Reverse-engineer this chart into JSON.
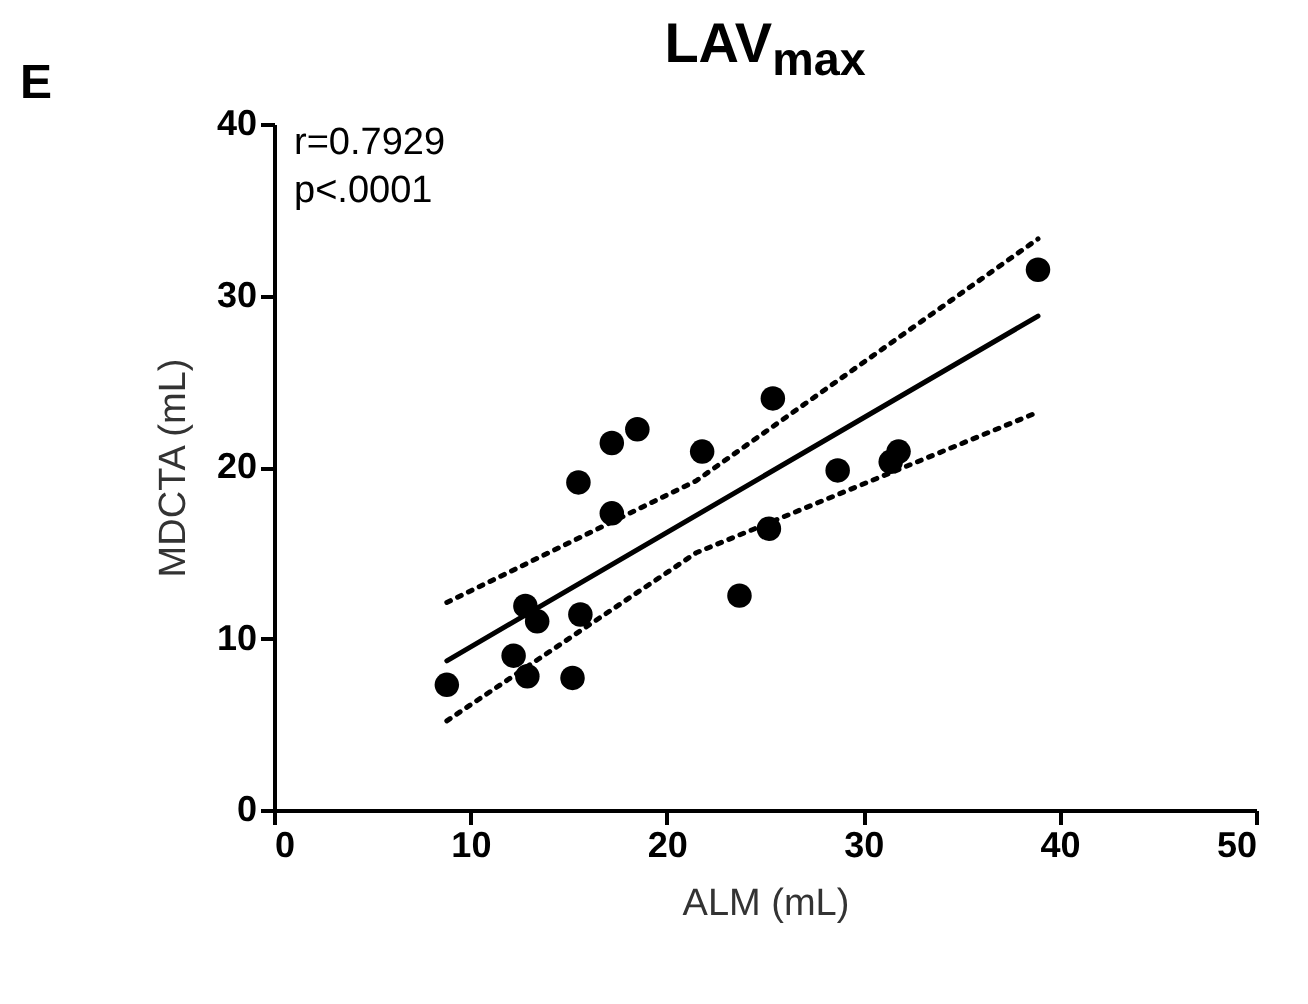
{
  "chart_data": {
    "type": "scatter",
    "title": "LAV$_{max}$",
    "xlabel": "ALM (mL)",
    "ylabel": "MDCTA (mL)",
    "annotations": [
      "E",
      "r=0.7929",
      "p<.0001"
    ],
    "xlim": [
      0,
      50
    ],
    "xticks": [
      0,
      10,
      20,
      30,
      40,
      50
    ],
    "ylim": [
      0,
      40
    ],
    "yticks": [
      0,
      10,
      20,
      30,
      40
    ],
    "grid": false,
    "series": [
      {
        "marker": "circle",
        "color": "#000000",
        "x": [
          8.8,
          12.2,
          12.8,
          13.4,
          12.9,
          15.2,
          15.6,
          15.5,
          17.2,
          17.2,
          18.5,
          21.8,
          23.7,
          25.2,
          25.4,
          28.7,
          31.4,
          31.8,
          38.9
        ],
        "values": [
          7.3,
          9.0,
          11.9,
          11.0,
          7.8,
          7.7,
          11.4,
          19.1,
          17.3,
          21.4,
          22.2,
          20.9,
          12.5,
          16.4,
          24.0,
          19.8,
          20.3,
          20.9,
          31.5
        ]
      },
      {
        "type": "line",
        "marker": "none",
        "line_style": "solid",
        "color": "#000000",
        "x": [
          8.8,
          38.9
        ],
        "values": [
          8.7,
          28.8
        ]
      },
      {
        "type": "line",
        "marker": "none",
        "line_style": "dotted",
        "color": "#000000",
        "x": [
          8.8,
          21.5,
          38.9
        ],
        "values": [
          12.1,
          19.2,
          33.3
        ]
      },
      {
        "type": "line",
        "marker": "none",
        "line_style": "dotted",
        "color": "#000000",
        "x": [
          8.8,
          21.5,
          38.9
        ],
        "values": [
          5.2,
          15.0,
          23.2
        ]
      }
    ]
  }
}
